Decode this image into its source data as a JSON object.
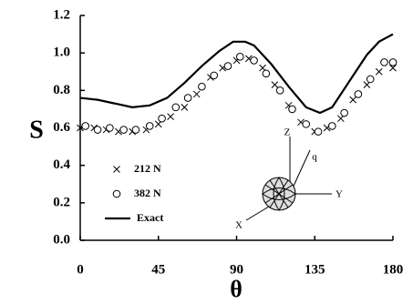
{
  "chart_data": {
    "type": "line",
    "xlabel": "θ",
    "ylabel": "S",
    "xlim": [
      0,
      180
    ],
    "xticks": [
      0,
      45,
      90,
      135,
      180
    ],
    "ylim": [
      0,
      1.2
    ],
    "yticks": [
      {
        "value": 0,
        "label": "0.0"
      },
      0.2,
      0.4,
      0.6,
      0.8,
      {
        "value": 1,
        "label": "1.0"
      },
      1.2
    ],
    "series": [
      {
        "name": "212 N",
        "marker": "x",
        "color": "#000",
        "x": [
          0,
          8,
          15,
          22,
          30,
          38,
          45,
          52,
          60,
          67,
          75,
          82,
          90,
          97,
          105,
          112,
          120,
          127,
          135,
          142,
          150,
          157,
          165,
          172,
          180
        ],
        "values": [
          0.6,
          0.6,
          0.59,
          0.58,
          0.58,
          0.59,
          0.62,
          0.66,
          0.71,
          0.78,
          0.87,
          0.92,
          0.96,
          0.97,
          0.92,
          0.83,
          0.72,
          0.63,
          0.58,
          0.6,
          0.65,
          0.75,
          0.83,
          0.9,
          0.92
        ]
      },
      {
        "name": "382 N",
        "marker": "o",
        "color": "#000",
        "x": [
          3,
          10,
          17,
          25,
          32,
          40,
          47,
          55,
          62,
          70,
          77,
          85,
          92,
          100,
          107,
          115,
          122,
          130,
          137,
          145,
          152,
          160,
          167,
          175,
          180
        ],
        "values": [
          0.61,
          0.59,
          0.6,
          0.59,
          0.59,
          0.61,
          0.65,
          0.71,
          0.76,
          0.82,
          0.88,
          0.93,
          0.98,
          0.96,
          0.89,
          0.8,
          0.7,
          0.62,
          0.58,
          0.61,
          0.68,
          0.78,
          0.86,
          0.95,
          0.95
        ]
      },
      {
        "name": "Exact",
        "marker": "line",
        "color": "#000",
        "x": [
          0,
          10,
          20,
          30,
          40,
          50,
          60,
          70,
          80,
          88,
          95,
          100,
          110,
          120,
          130,
          138,
          145,
          155,
          165,
          172,
          180
        ],
        "values": [
          0.76,
          0.75,
          0.73,
          0.71,
          0.72,
          0.76,
          0.84,
          0.93,
          1.01,
          1.06,
          1.06,
          1.04,
          0.94,
          0.82,
          0.71,
          0.68,
          0.71,
          0.85,
          0.99,
          1.06,
          1.1
        ]
      }
    ],
    "annotations": [
      "Z",
      "Y",
      "X",
      "q"
    ]
  }
}
